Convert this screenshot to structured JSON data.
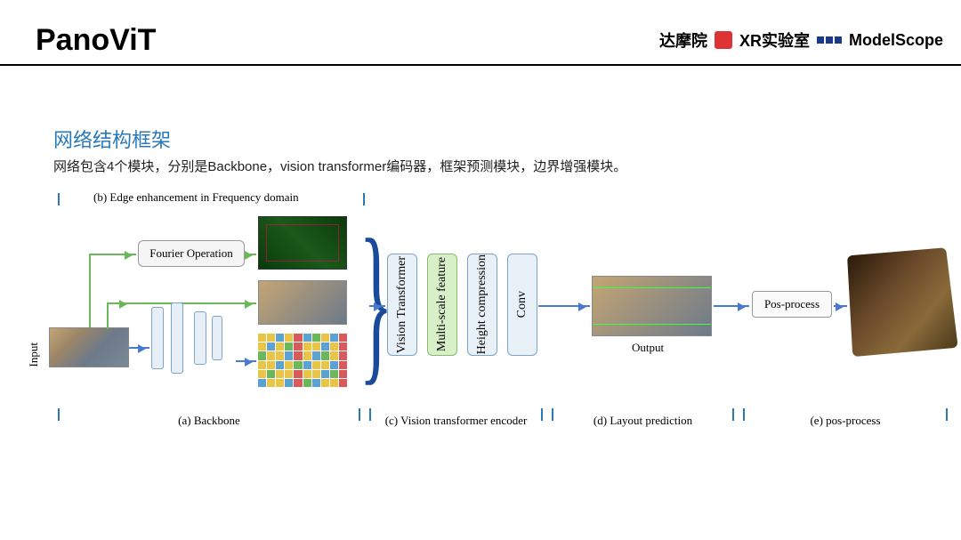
{
  "header": {
    "title": "PanoViT",
    "logo_damo": "达摩院",
    "logo_xr": "XR实验室",
    "logo_ms": "ModelScope"
  },
  "section": {
    "title": "网络结构框架",
    "subtitle": "网络包含4个模块，分别是Backbone，vision transformer编码器，框架预测模块，边界增强模块。"
  },
  "diagram": {
    "input_label": "Input",
    "fourier_box": "Fourier Operation",
    "modules": {
      "vit": "Vision Transformer",
      "msf": "Multi-scale feature",
      "hc": "Height compression",
      "conv": "Conv"
    },
    "output_label": "Output",
    "posprocess": "Pos-process",
    "sections": {
      "b": "(b) Edge enhancement in Frequency domain",
      "a": "(a)  Backbone",
      "c": "(c) Vision transformer encoder",
      "d": "(d)  Layout prediction",
      "e": "(e)  pos-process"
    },
    "colors": {
      "accent": "#2a7ab8",
      "arrow_green": "#6ab85a",
      "arrow_blue": "#4a7ad0",
      "mod_blue_fill": "#e8f0f8",
      "mod_blue_border": "#7da3c7",
      "mod_green_fill": "#d8f0c8",
      "mod_green_border": "#8aba6a"
    }
  }
}
